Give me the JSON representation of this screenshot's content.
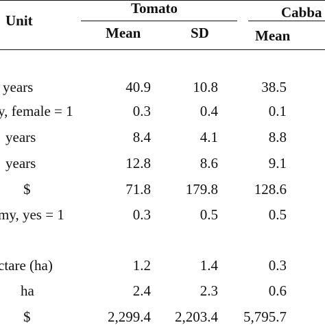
{
  "header": {
    "unit_label": "Unit",
    "tomato_label": "Tomato",
    "cabbage_label": "Cabba",
    "tomato_mean_label": "Mean",
    "tomato_sd_label": "SD",
    "cabbage_mean_label": "Mean"
  },
  "rows": [
    {
      "unit": "years",
      "tomato_mean": "40.9",
      "tomato_sd": "10.8",
      "cabbage_mean": "38.5"
    },
    {
      "unit": "y, female = 1",
      "tomato_mean": "0.3",
      "tomato_sd": "0.4",
      "cabbage_mean": "0.1"
    },
    {
      "unit": "years",
      "tomato_mean": "8.4",
      "tomato_sd": "4.1",
      "cabbage_mean": "8.8"
    },
    {
      "unit": "years",
      "tomato_mean": "12.8",
      "tomato_sd": "8.6",
      "cabbage_mean": "9.1"
    },
    {
      "unit": "$",
      "tomato_mean": "71.8",
      "tomato_sd": "179.8",
      "cabbage_mean": "128.6"
    },
    {
      "unit": "my, yes = 1",
      "tomato_mean": "0.3",
      "tomato_sd": "0.5",
      "cabbage_mean": "0.5"
    },
    {
      "unit": "ctare (ha)",
      "tomato_mean": "1.2",
      "tomato_sd": "1.4",
      "cabbage_mean": "0.3"
    },
    {
      "unit": "ha",
      "tomato_mean": "2.4",
      "tomato_sd": "2.3",
      "cabbage_mean": "0.6"
    },
    {
      "unit": "$",
      "tomato_mean": "2,299.4",
      "tomato_sd": "2,203.4",
      "cabbage_mean": "5,795.7"
    }
  ]
}
